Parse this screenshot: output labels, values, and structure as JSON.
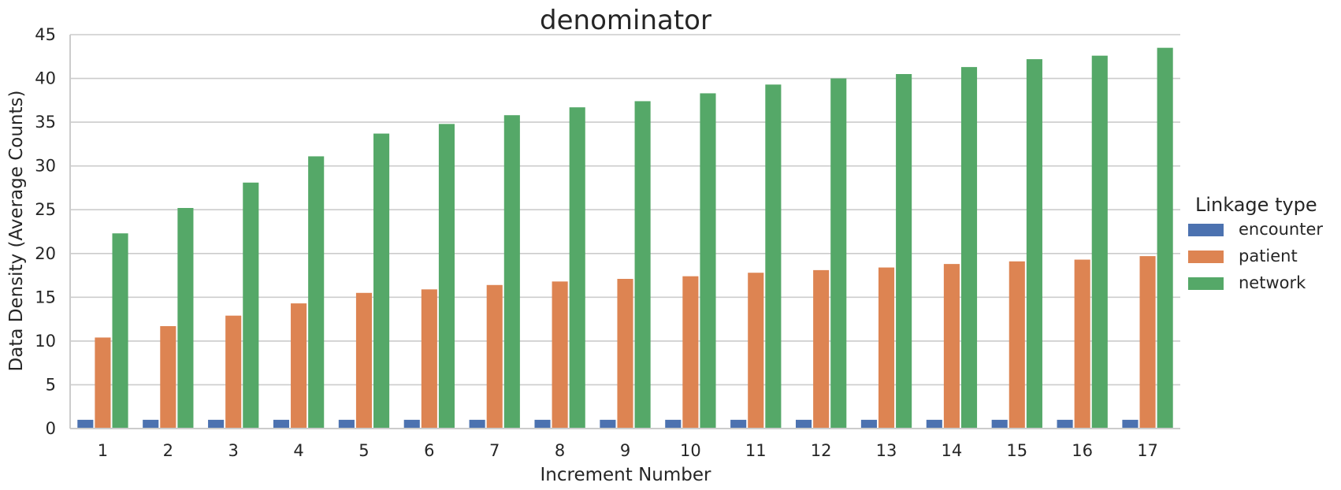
{
  "chart_data": {
    "type": "bar",
    "title": "denominator",
    "xlabel": "Increment Number",
    "ylabel": "Data Density (Average Counts)",
    "ylim": [
      0,
      45
    ],
    "yticks": [
      0,
      5,
      10,
      15,
      20,
      25,
      30,
      35,
      40,
      45
    ],
    "grid": true,
    "legend": {
      "title": "Linkage type",
      "placement": "right"
    },
    "categories": [
      "1",
      "2",
      "3",
      "4",
      "5",
      "6",
      "7",
      "8",
      "9",
      "10",
      "11",
      "12",
      "13",
      "14",
      "15",
      "16",
      "17"
    ],
    "series": [
      {
        "name": "encounter",
        "color": "#4c72b0",
        "values": [
          1,
          1,
          1,
          1,
          1,
          1,
          1,
          1,
          1,
          1,
          1,
          1,
          1,
          1,
          1,
          1,
          1
        ]
      },
      {
        "name": "patient",
        "color": "#dd8452",
        "values": [
          10.4,
          11.7,
          12.9,
          14.3,
          15.5,
          15.9,
          16.4,
          16.8,
          17.1,
          17.4,
          17.8,
          18.1,
          18.4,
          18.8,
          19.1,
          19.3,
          19.7
        ]
      },
      {
        "name": "network",
        "color": "#55a868",
        "values": [
          22.3,
          25.2,
          28.1,
          31.1,
          33.7,
          34.8,
          35.8,
          36.7,
          37.4,
          38.3,
          39.3,
          40.0,
          40.5,
          41.3,
          42.2,
          42.6,
          43.5
        ]
      }
    ]
  }
}
